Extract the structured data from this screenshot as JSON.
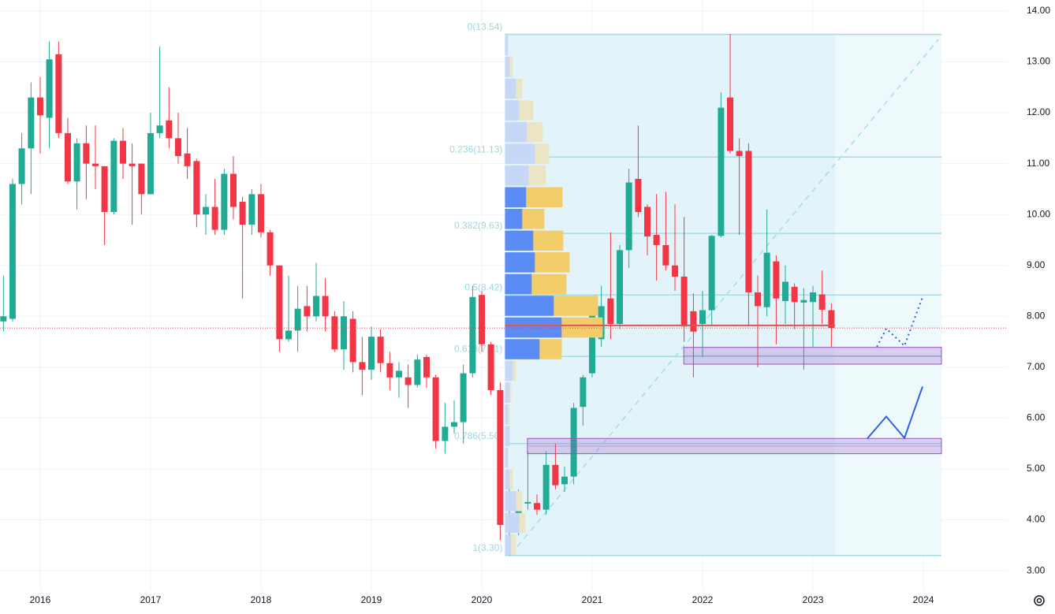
{
  "chart_data": {
    "type": "candlestick",
    "xlim": [
      2015.636,
      2024.764
    ],
    "xticks": [
      2016,
      2017,
      2018,
      2019,
      2020,
      2021,
      2022,
      2023,
      2024
    ],
    "ylim": [
      2.63,
      14.216
    ],
    "yticks": [
      {
        "value": 3,
        "label": "3.00"
      },
      {
        "value": 4,
        "label": "4.00"
      },
      {
        "value": 5,
        "label": "5.00"
      },
      {
        "value": 6,
        "label": "6.00"
      },
      {
        "value": 7,
        "label": "7.00"
      },
      {
        "value": 8,
        "label": "8.00"
      },
      {
        "value": 9,
        "label": "9.00"
      },
      {
        "value": 10,
        "label": "10.00"
      },
      {
        "value": 11,
        "label": "11.00"
      },
      {
        "value": 12,
        "label": "12.00"
      },
      {
        "value": 13,
        "label": "13.00"
      },
      {
        "value": 14,
        "label": "14.00"
      }
    ],
    "grid": true,
    "up_color": "#22ab94",
    "down_color": "#f23645",
    "price_line": true,
    "x": [
      2015.667,
      2015.75,
      2015.833,
      2015.917,
      2016,
      2016.083,
      2016.167,
      2016.25,
      2016.333,
      2016.417,
      2016.5,
      2016.583,
      2016.667,
      2016.75,
      2016.833,
      2016.917,
      2017,
      2017.083,
      2017.167,
      2017.25,
      2017.333,
      2017.417,
      2017.5,
      2017.583,
      2017.667,
      2017.75,
      2017.833,
      2017.917,
      2018,
      2018.083,
      2018.167,
      2018.25,
      2018.333,
      2018.417,
      2018.5,
      2018.583,
      2018.667,
      2018.75,
      2018.833,
      2018.917,
      2019,
      2019.083,
      2019.167,
      2019.25,
      2019.333,
      2019.417,
      2019.5,
      2019.583,
      2019.667,
      2019.75,
      2019.833,
      2019.917,
      2020,
      2020.083,
      2020.167,
      2020.25,
      2020.333,
      2020.417,
      2020.5,
      2020.583,
      2020.667,
      2020.75,
      2020.833,
      2020.917,
      2021,
      2021.083,
      2021.167,
      2021.25,
      2021.333,
      2021.417,
      2021.5,
      2021.583,
      2021.667,
      2021.75,
      2021.833,
      2021.917,
      2022,
      2022.083,
      2022.167,
      2022.25,
      2022.333,
      2022.417,
      2022.5,
      2022.583,
      2022.667,
      2022.75,
      2022.833,
      2022.917,
      2023,
      2023.083,
      2023.167
    ],
    "open": [
      7.9,
      7.95,
      10.6,
      11.3,
      12.3,
      11.9,
      13.15,
      11.6,
      10.65,
      11.4,
      11.0,
      10.95,
      10.05,
      11.45,
      11.0,
      11.0,
      10.4,
      11.6,
      11.85,
      11.5,
      11.2,
      11.05,
      10.0,
      10.15,
      9.7,
      10.8,
      10.25,
      9.8,
      10.4,
      9.65,
      9.0,
      7.55,
      7.72,
      8.2,
      8.0,
      8.4,
      8.0,
      7.35,
      7.95,
      7.1,
      6.95,
      7.6,
      7.08,
      6.8,
      6.8,
      6.65,
      7.2,
      6.8,
      5.55,
      5.83,
      5.92,
      6.88,
      8.42,
      7.45,
      6.55,
      3.75,
      3.95,
      4.32,
      4.33,
      4.2,
      5.08,
      4.7,
      4.85,
      6.22,
      6.88,
      7.55,
      8.35,
      7.85,
      9.3,
      10.7,
      10.15,
      9.6,
      9.4,
      9.0,
      8.78,
      8.1,
      7.85,
      8.12,
      9.58,
      12.3,
      11.25,
      11.25,
      8.47,
      8.18,
      9.08,
      8.3,
      8.58,
      8.27,
      8.28,
      8.43,
      8.12
    ],
    "high": [
      8.8,
      10.7,
      11.6,
      12.6,
      12.7,
      13.4,
      13.4,
      11.9,
      11.5,
      11.75,
      11.75,
      10.95,
      11.5,
      11.7,
      11.4,
      11.0,
      12.0,
      13.3,
      12.5,
      12.0,
      11.7,
      11.1,
      10.4,
      10.7,
      10.9,
      11.15,
      10.35,
      10.5,
      10.6,
      9.7,
      9.0,
      8.8,
      8.6,
      8.6,
      9.05,
      8.75,
      8.1,
      8.3,
      8.1,
      7.6,
      7.8,
      7.75,
      7.3,
      7.1,
      7.05,
      7.25,
      7.25,
      6.85,
      6.3,
      6.35,
      7.05,
      8.6,
      8.5,
      7.5,
      6.7,
      4.65,
      4.6,
      5.35,
      4.5,
      5.35,
      5.5,
      5.05,
      6.3,
      6.85,
      8.4,
      8.6,
      9.65,
      9.4,
      10.9,
      11.75,
      10.2,
      10.4,
      10.45,
      10.2,
      9.95,
      8.45,
      8.5,
      9.6,
      12.4,
      13.55,
      11.5,
      11.4,
      8.8,
      10.1,
      9.2,
      9.0,
      8.65,
      8.55,
      8.6,
      8.9,
      8.25
    ],
    "low": [
      7.7,
      7.9,
      10.2,
      10.4,
      11.2,
      11.3,
      11.5,
      10.6,
      10.1,
      10.3,
      10.5,
      9.4,
      10.0,
      10.7,
      9.8,
      10.0,
      10.4,
      11.5,
      11.3,
      11.0,
      10.7,
      9.75,
      9.6,
      9.6,
      9.6,
      9.9,
      8.35,
      9.6,
      9.55,
      8.8,
      7.3,
      7.5,
      7.3,
      7.7,
      7.9,
      7.7,
      7.3,
      6.95,
      6.9,
      6.45,
      6.75,
      6.9,
      6.55,
      6.4,
      6.2,
      6.6,
      6.6,
      5.4,
      5.3,
      5.7,
      5.5,
      6.8,
      7.3,
      6.45,
      3.6,
      3.3,
      3.7,
      4.2,
      4.1,
      4.1,
      4.6,
      4.55,
      4.7,
      5.85,
      6.8,
      7.4,
      7.55,
      7.75,
      8.95,
      9.95,
      9.2,
      8.7,
      8.9,
      8.5,
      7.5,
      6.8,
      7.2,
      7.8,
      9.55,
      11.2,
      9.6,
      7.8,
      7.0,
      8.0,
      7.45,
      7.85,
      7.75,
      6.95,
      7.4,
      7.85,
      7.4
    ],
    "close": [
      8.0,
      10.6,
      11.3,
      12.3,
      11.95,
      13.05,
      11.6,
      10.65,
      11.4,
      11.0,
      10.95,
      10.05,
      11.45,
      11.0,
      10.95,
      10.4,
      11.6,
      11.75,
      11.5,
      11.15,
      10.95,
      10.0,
      10.15,
      9.7,
      10.8,
      10.15,
      9.8,
      10.4,
      9.65,
      9.0,
      7.55,
      7.72,
      8.15,
      8.0,
      8.4,
      8.0,
      7.35,
      8.0,
      7.1,
      6.95,
      7.6,
      7.08,
      6.8,
      6.93,
      6.65,
      7.15,
      6.8,
      5.55,
      5.83,
      5.92,
      6.88,
      8.38,
      7.45,
      6.55,
      3.9,
      4.0,
      4.3,
      4.35,
      4.2,
      5.08,
      4.68,
      4.85,
      6.2,
      6.8,
      8.05,
      8.2,
      7.85,
      9.3,
      10.63,
      10.05,
      9.57,
      9.4,
      9.0,
      8.78,
      7.8,
      7.7,
      8.12,
      9.58,
      12.1,
      11.25,
      11.15,
      8.47,
      8.2,
      9.25,
      8.35,
      8.68,
      8.28,
      8.32,
      8.47,
      8.13,
      7.77
    ],
    "fib": {
      "x_start": 2020.21,
      "x_end": 2024.164,
      "shade_end": 2023.2,
      "color": "#a4dce6",
      "levels": [
        {
          "value": 13.54,
          "label": "0(13.54)"
        },
        {
          "value": 11.13,
          "label": "0.236(11.13)"
        },
        {
          "value": 9.63,
          "label": "0.382(9.63)"
        },
        {
          "value": 8.42,
          "label": "0.5(8.42)"
        },
        {
          "value": 7.21,
          "label": "0.618(7.21)"
        },
        {
          "value": 5.5,
          "label": "0.786(5.50)"
        },
        {
          "value": 3.3,
          "label": "1(3.30)"
        }
      ]
    },
    "volume_profile": {
      "price_range": [
        3.3,
        13.54
      ],
      "value_area_rows": [
        7,
        14
      ],
      "up": [
        4,
        6,
        14,
        18,
        28,
        38,
        30,
        27,
        22,
        36,
        38,
        34,
        62,
        72,
        44,
        10,
        6,
        4,
        6,
        4,
        6,
        14,
        18,
        8
      ],
      "down": [
        0,
        4,
        8,
        18,
        20,
        18,
        22,
        46,
        28,
        38,
        44,
        44,
        56,
        52,
        28,
        4,
        2,
        2,
        0,
        0,
        4,
        8,
        8,
        6
      ],
      "up_color": "#5b8cf5",
      "down_color": "#f2cd69",
      "up_faded": "#c6d7f7",
      "down_faded": "#ebe5c6"
    },
    "poc": {
      "value": 7.82,
      "x": [
        2020.21,
        2023.2
      ],
      "color": "#e0554b"
    },
    "trend_line": {
      "x": [
        2020.264,
        2024.136
      ],
      "y": [
        3.32,
        13.44
      ]
    },
    "boxes": [
      {
        "x": [
          2021.83,
          2024.164
        ],
        "y": [
          7.06,
          7.39
        ]
      },
      {
        "x": [
          2020.414,
          2024.164
        ],
        "y": [
          5.3,
          5.6
        ]
      }
    ],
    "box_color": "#9c4fc4",
    "projections": [
      {
        "x": [
          2023.493,
          2023.664,
          2023.829,
          2023.993
        ],
        "y": [
          5.6,
          6.03,
          5.61,
          6.62
        ],
        "style": "solid"
      },
      {
        "x": [
          2023.579,
          2023.664,
          2023.829,
          2023.993
        ],
        "y": [
          7.4,
          7.76,
          7.42,
          8.38
        ],
        "style": "dotted"
      }
    ],
    "projection_color": "#2f62e0"
  }
}
